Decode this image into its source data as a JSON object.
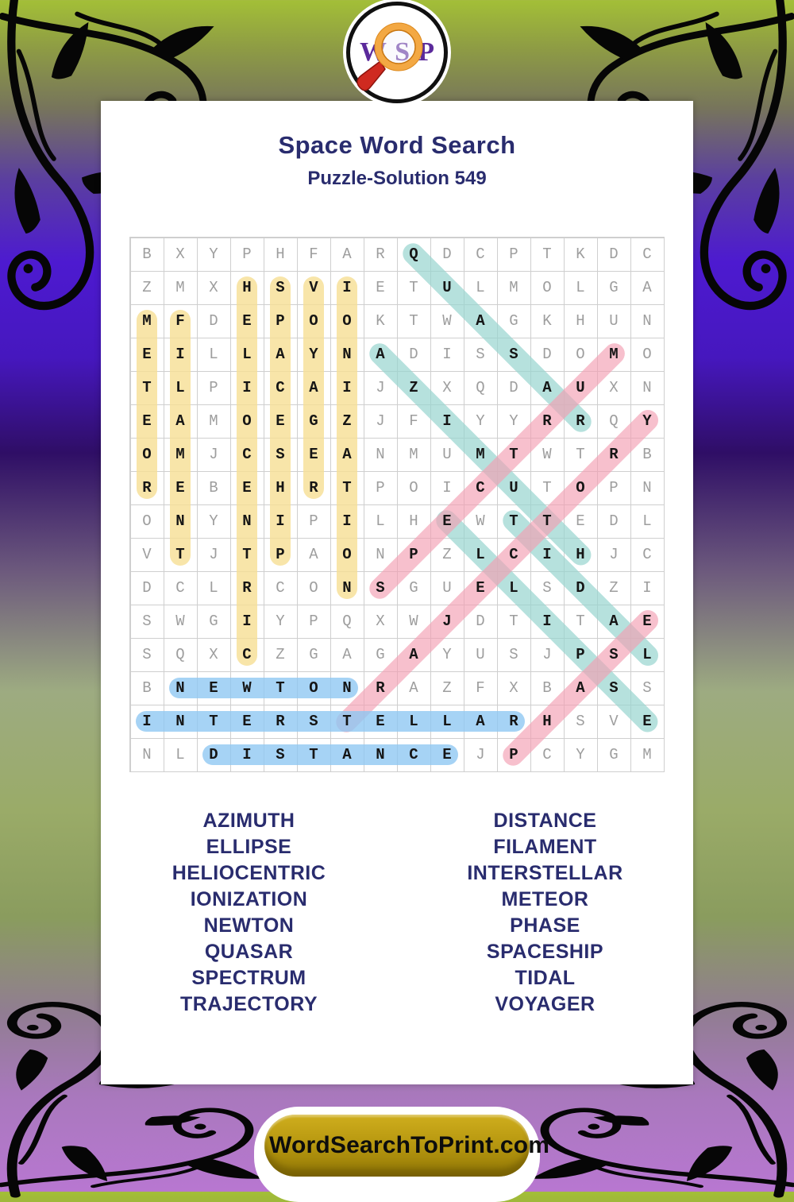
{
  "logo": {
    "letters": [
      "W",
      "S",
      "P"
    ]
  },
  "header": {
    "title": "Space Word Search",
    "subtitle": "Puzzle-Solution 549"
  },
  "grid": {
    "rows": [
      "BXYPHFARQDCPTKDC",
      "ZMXHSVIETULMOLGA",
      "MFDEPOOKTWAGKHUN",
      "EILLAYNADISSDOMO",
      "TLPICAIJZXQDAUXN",
      "EAMOEGZJFIYYRRQY",
      "OMJCSEANMUMTWTRB",
      "REBEHRTPOICUTOPN",
      "ONYNIPILHEWTTEDL",
      "VTJTPAONPZLCIHJC",
      "DCLRCONSGUELSDZI",
      "SWGIYPQXWJDTITAE",
      "SQXCZGAGAYUSJPSL",
      "BNEWTONRAZFXBASS",
      "INTERSTELLARHSVE",
      "NLDISTANCEJPCYGM"
    ]
  },
  "solutions": [
    {
      "word": "METEOR",
      "color": "yellow",
      "start": [
        3,
        1
      ],
      "end": [
        8,
        1
      ]
    },
    {
      "word": "FILAMENT",
      "color": "yellow",
      "start": [
        3,
        2
      ],
      "end": [
        10,
        2
      ]
    },
    {
      "word": "HELIOCENTRIC",
      "color": "yellow",
      "start": [
        2,
        4
      ],
      "end": [
        13,
        4
      ]
    },
    {
      "word": "SPACESHIP",
      "color": "yellow",
      "start": [
        2,
        5
      ],
      "end": [
        10,
        5
      ]
    },
    {
      "word": "VOYAGER",
      "color": "yellow",
      "start": [
        2,
        6
      ],
      "end": [
        8,
        6
      ]
    },
    {
      "word": "IONIZATION",
      "color": "yellow",
      "start": [
        2,
        7
      ],
      "end": [
        11,
        7
      ]
    },
    {
      "word": "QUASAR",
      "color": "teal",
      "start": [
        1,
        9
      ],
      "end": [
        6,
        14
      ]
    },
    {
      "word": "AZIMUTH",
      "color": "teal",
      "start": [
        4,
        8
      ],
      "end": [
        10,
        14
      ]
    },
    {
      "word": "ELLIPSE",
      "color": "teal",
      "start": [
        9,
        10
      ],
      "end": [
        15,
        16
      ]
    },
    {
      "word": "TIDAL",
      "color": "teal",
      "start": [
        9,
        12
      ],
      "end": [
        13,
        16
      ]
    },
    {
      "word": "SPECTRUM",
      "color": "pink",
      "start": [
        11,
        8
      ],
      "end": [
        4,
        15
      ]
    },
    {
      "word": "TRAJECTORY",
      "color": "pink",
      "start": [
        15,
        7
      ],
      "end": [
        6,
        16
      ]
    },
    {
      "word": "PHASE",
      "color": "pink",
      "start": [
        16,
        12
      ],
      "end": [
        12,
        16
      ]
    },
    {
      "word": "NEWTON",
      "color": "blue",
      "start": [
        14,
        2
      ],
      "end": [
        14,
        7
      ]
    },
    {
      "word": "INTERSTELLAR",
      "color": "blue",
      "start": [
        15,
        1
      ],
      "end": [
        15,
        12
      ]
    },
    {
      "word": "DISTANCE",
      "color": "blue",
      "start": [
        16,
        3
      ],
      "end": [
        16,
        10
      ]
    }
  ],
  "colors": {
    "yellow": "rgba(246,222,148,0.8)",
    "teal": "rgba(151,212,206,0.7)",
    "pink": "rgba(243,158,178,0.65)",
    "blue": "rgba(141,199,242,0.78)"
  },
  "word_list": {
    "left": [
      "AZIMUTH",
      "ELLIPSE",
      "HELIOCENTRIC",
      "IONIZATION",
      "NEWTON",
      "QUASAR",
      "SPECTRUM",
      "TRAJECTORY"
    ],
    "right": [
      "DISTANCE",
      "FILAMENT",
      "INTERSTELLAR",
      "METEOR",
      "PHASE",
      "SPACESHIP",
      "TIDAL",
      "VOYAGER"
    ]
  },
  "footer": {
    "site": "WordSearchToPrint.com"
  }
}
